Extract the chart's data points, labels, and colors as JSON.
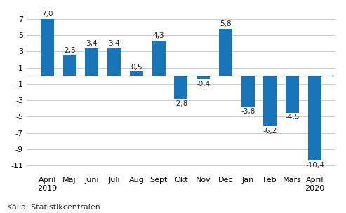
{
  "categories": [
    "April\n2019",
    "Maj",
    "Juni",
    "Juli",
    "Aug",
    "Sept",
    "Okt",
    "Nov",
    "Dec",
    "Jan",
    "Feb",
    "Mars",
    "April\n2020"
  ],
  "values": [
    7.0,
    2.5,
    3.4,
    3.4,
    0.5,
    4.3,
    -2.8,
    -0.4,
    5.8,
    -3.8,
    -6.2,
    -4.5,
    -10.4
  ],
  "bar_color": "#1f77b4",
  "bar_color_hex": "#1874b8",
  "ylim": [
    -12,
    8
  ],
  "yticks": [
    -11,
    -9,
    -7,
    -5,
    -3,
    -1,
    1,
    3,
    5,
    7
  ],
  "source_text": "Källa: Statistikcentralen",
  "background_color": "#ffffff",
  "grid_color": "#cccccc",
  "bar_width": 0.6,
  "zero_line_color": "#333333",
  "label_fontsize": 7.5,
  "tick_fontsize": 8,
  "source_fontsize": 8
}
